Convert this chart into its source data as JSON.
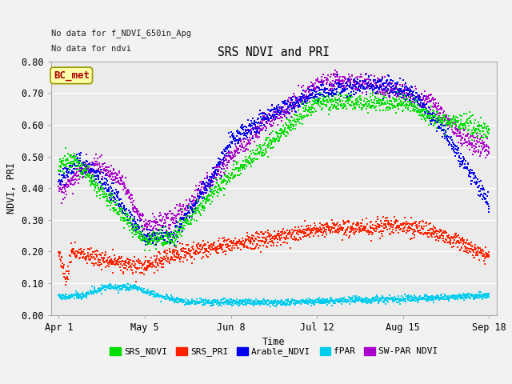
{
  "title": "SRS NDVI and PRI",
  "ylabel": "NDVI, PRI",
  "xlabel": "Time",
  "top_left_text1": "No data for f_NDVI_650in_Apg",
  "top_left_text2": "No data for ndvi",
  "bc_met_label": "BC_met",
  "ylim": [
    0.0,
    0.8
  ],
  "yticks": [
    0.0,
    0.1,
    0.2,
    0.3,
    0.4,
    0.5,
    0.6,
    0.7,
    0.8
  ],
  "xtick_labels": [
    "Apr 1",
    "May 5",
    "Jun 8",
    "Jul 12",
    "Aug 15",
    "Sep 18"
  ],
  "xtick_positions": [
    0,
    34,
    68,
    102,
    136,
    170
  ],
  "colors": {
    "SRS_NDVI": "#00dd00",
    "SRS_PRI": "#ff2200",
    "Arable_NDVI": "#0000ee",
    "fPAR": "#00ccee",
    "SW_PAR_NDVI": "#aa00cc"
  },
  "bg_color": "#ebebeb",
  "fig_bg_color": "#f2f2f2",
  "bc_met_box_color": "#ffffaa",
  "bc_met_text_color": "#aa0000",
  "grid_color": "#ffffff",
  "spine_color": "#aaaaaa"
}
